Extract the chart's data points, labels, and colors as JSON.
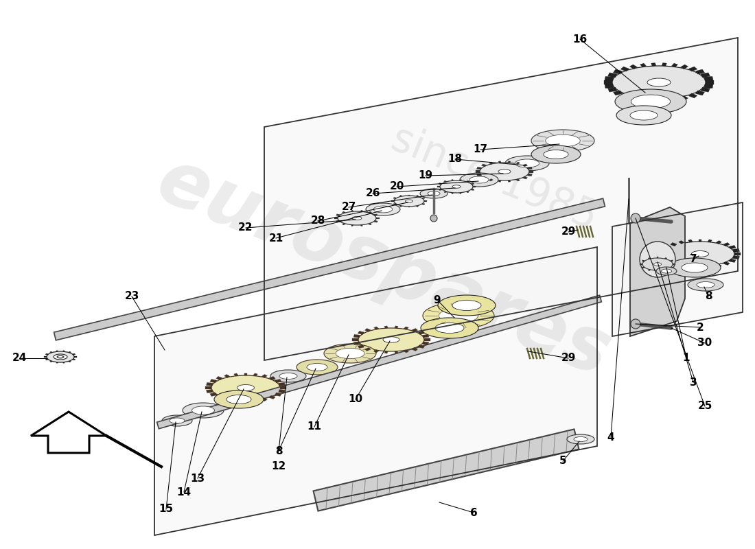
{
  "background_color": "#ffffff",
  "watermark_text": "eurospares",
  "watermark_subtext": "since 1985",
  "label_fontsize": 11
}
